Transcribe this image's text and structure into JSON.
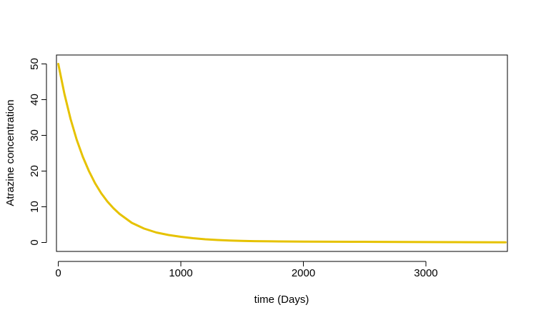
{
  "chart_data": {
    "type": "line",
    "title": "",
    "xlabel": "time (Days)",
    "ylabel": "Atrazine concentration",
    "xlim": [
      -15,
      3665
    ],
    "ylim": [
      -2.5,
      52.5
    ],
    "x_ticks": [
      0,
      1000,
      2000,
      3000
    ],
    "y_ticks": [
      0,
      10,
      20,
      30,
      40,
      50
    ],
    "x_tick_labels": [
      "0",
      "1000",
      "2000",
      "3000"
    ],
    "y_tick_labels": [
      "0",
      "10",
      "20",
      "30",
      "40",
      "50"
    ],
    "grid": false,
    "series": [
      {
        "color": "#E6C200",
        "x": [
          0,
          50,
          100,
          150,
          200,
          250,
          300,
          350,
          400,
          450,
          500,
          600,
          700,
          800,
          900,
          1000,
          1100,
          1200,
          1300,
          1400,
          1500,
          1600,
          1800,
          2000,
          2200,
          2400,
          2600,
          2800,
          3000,
          3200,
          3400,
          3650
        ],
        "values": [
          50,
          41.6,
          34.6,
          28.8,
          24.0,
          20.0,
          16.6,
          13.8,
          11.5,
          9.6,
          8.0,
          5.5,
          3.9,
          2.8,
          2.1,
          1.6,
          1.2,
          0.9,
          0.7,
          0.55,
          0.45,
          0.38,
          0.3,
          0.25,
          0.22,
          0.2,
          0.18,
          0.15,
          0.12,
          0.1,
          0.08,
          0.06
        ]
      }
    ]
  }
}
